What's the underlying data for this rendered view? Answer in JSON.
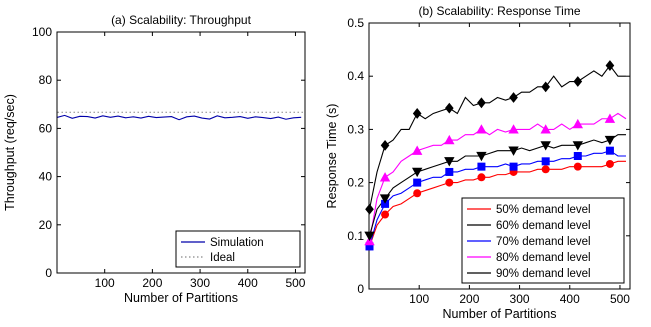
{
  "chart_data": [
    {
      "type": "line",
      "title": "(a) Scalability: Throughput",
      "xlabel": "Number of Partitions",
      "ylabel": "Throughput (req/sec)",
      "xlim": [
        0,
        520
      ],
      "ylim": [
        0,
        100
      ],
      "xticks": [
        100,
        200,
        300,
        400,
        500
      ],
      "yticks": [
        0,
        20,
        40,
        60,
        80,
        100
      ],
      "grid": false,
      "legend_position": "bottom-right",
      "series": [
        {
          "name": "Simulation",
          "color": "#0000aa",
          "style": "solid",
          "x": [
            1,
            16,
            32,
            48,
            64,
            80,
            96,
            112,
            128,
            144,
            160,
            176,
            192,
            208,
            224,
            240,
            256,
            272,
            288,
            304,
            320,
            336,
            352,
            368,
            384,
            400,
            416,
            432,
            448,
            464,
            480,
            496,
            512
          ],
          "y": [
            64.6,
            65.4,
            64.2,
            65.0,
            64.9,
            64.3,
            65.2,
            64.6,
            65.1,
            64.4,
            64.8,
            64.3,
            65.0,
            64.5,
            64.7,
            64.9,
            63.6,
            64.8,
            65.1,
            64.3,
            63.9,
            65.2,
            64.4,
            64.6,
            64.9,
            64.2,
            64.8,
            64.5,
            64.1,
            64.7,
            63.8,
            64.4,
            64.6
          ]
        },
        {
          "name": "Ideal",
          "color": "#888888",
          "style": "dotted",
          "x": [
            1,
            520
          ],
          "y": [
            66.7,
            66.7
          ]
        }
      ]
    },
    {
      "type": "line",
      "title": "(b) Scalability: Response Time",
      "xlabel": "Number of Partitions",
      "ylabel": "Response Time (s)",
      "xlim": [
        0,
        520
      ],
      "ylim": [
        0,
        0.5
      ],
      "xticks": [
        100,
        200,
        300,
        400,
        500
      ],
      "yticks": [
        0,
        0.1,
        0.2,
        0.3,
        0.4,
        0.5
      ],
      "ytick_labels": [
        "0",
        "0.1",
        "0.2",
        "0.3",
        "0.4",
        "0.5"
      ],
      "grid": false,
      "legend_position": "bottom-right",
      "series": [
        {
          "name": "50% demand level",
          "color": "#ff0000",
          "marker": "circle",
          "x": [
            1,
            16,
            32,
            48,
            64,
            80,
            96,
            112,
            128,
            144,
            160,
            176,
            192,
            208,
            224,
            240,
            256,
            272,
            288,
            304,
            320,
            336,
            352,
            368,
            384,
            400,
            416,
            432,
            448,
            464,
            480,
            496,
            512
          ],
          "y": [
            0.08,
            0.12,
            0.14,
            0.155,
            0.16,
            0.17,
            0.18,
            0.185,
            0.19,
            0.195,
            0.2,
            0.2,
            0.205,
            0.205,
            0.21,
            0.21,
            0.215,
            0.215,
            0.22,
            0.22,
            0.22,
            0.225,
            0.225,
            0.225,
            0.225,
            0.23,
            0.23,
            0.23,
            0.23,
            0.23,
            0.235,
            0.24,
            0.24
          ],
          "marker_indices": [
            0,
            2,
            6,
            10,
            14,
            18,
            22,
            26,
            30
          ]
        },
        {
          "name": "60% demand level",
          "color": "#000000",
          "marker": "diamond",
          "x": [
            1,
            16,
            32,
            48,
            64,
            80,
            96,
            112,
            128,
            144,
            160,
            176,
            192,
            208,
            224,
            240,
            256,
            272,
            288,
            304,
            320,
            336,
            352,
            368,
            384,
            400,
            416,
            432,
            448,
            464,
            480,
            496,
            512
          ],
          "y": [
            0.15,
            0.22,
            0.27,
            0.28,
            0.3,
            0.3,
            0.33,
            0.32,
            0.33,
            0.335,
            0.34,
            0.33,
            0.36,
            0.345,
            0.35,
            0.35,
            0.36,
            0.355,
            0.36,
            0.37,
            0.37,
            0.38,
            0.38,
            0.4,
            0.38,
            0.39,
            0.39,
            0.4,
            0.41,
            0.4,
            0.42,
            0.4,
            0.4
          ],
          "marker_indices": [
            0,
            2,
            6,
            10,
            14,
            18,
            22,
            26,
            30
          ]
        },
        {
          "name": "70% demand level",
          "color": "#0000ff",
          "marker": "square",
          "x": [
            1,
            16,
            32,
            48,
            64,
            80,
            96,
            112,
            128,
            144,
            160,
            176,
            192,
            208,
            224,
            240,
            256,
            272,
            288,
            304,
            320,
            336,
            352,
            368,
            384,
            400,
            416,
            432,
            448,
            464,
            480,
            496,
            512
          ],
          "y": [
            0.08,
            0.13,
            0.16,
            0.175,
            0.18,
            0.19,
            0.2,
            0.205,
            0.21,
            0.21,
            0.22,
            0.22,
            0.225,
            0.225,
            0.23,
            0.23,
            0.23,
            0.235,
            0.23,
            0.235,
            0.235,
            0.24,
            0.24,
            0.24,
            0.245,
            0.245,
            0.25,
            0.25,
            0.255,
            0.255,
            0.26,
            0.25,
            0.25
          ],
          "marker_indices": [
            0,
            2,
            6,
            10,
            14,
            18,
            22,
            26,
            30
          ]
        },
        {
          "name": "80% demand level",
          "color": "#ff00ff",
          "marker": "triangle-up",
          "x": [
            1,
            16,
            32,
            48,
            64,
            80,
            96,
            112,
            128,
            144,
            160,
            176,
            192,
            208,
            224,
            240,
            256,
            272,
            288,
            304,
            320,
            336,
            352,
            368,
            384,
            400,
            416,
            432,
            448,
            464,
            480,
            496,
            512
          ],
          "y": [
            0.09,
            0.17,
            0.21,
            0.22,
            0.24,
            0.25,
            0.26,
            0.265,
            0.27,
            0.27,
            0.28,
            0.28,
            0.29,
            0.29,
            0.3,
            0.29,
            0.3,
            0.295,
            0.3,
            0.3,
            0.3,
            0.31,
            0.3,
            0.3,
            0.31,
            0.3,
            0.31,
            0.31,
            0.31,
            0.32,
            0.32,
            0.33,
            0.32
          ],
          "marker_indices": [
            0,
            2,
            6,
            10,
            14,
            18,
            22,
            26,
            30
          ]
        },
        {
          "name": "90% demand level",
          "color": "#000000",
          "marker": "triangle-down",
          "x": [
            1,
            16,
            32,
            48,
            64,
            80,
            96,
            112,
            128,
            144,
            160,
            176,
            192,
            208,
            224,
            240,
            256,
            272,
            288,
            304,
            320,
            336,
            352,
            368,
            384,
            400,
            416,
            432,
            448,
            464,
            480,
            496,
            512
          ],
          "y": [
            0.1,
            0.15,
            0.17,
            0.19,
            0.2,
            0.21,
            0.22,
            0.225,
            0.23,
            0.235,
            0.24,
            0.24,
            0.25,
            0.25,
            0.25,
            0.255,
            0.26,
            0.26,
            0.26,
            0.265,
            0.26,
            0.265,
            0.27,
            0.265,
            0.27,
            0.27,
            0.27,
            0.275,
            0.28,
            0.275,
            0.28,
            0.29,
            0.29
          ],
          "marker_indices": [
            0,
            2,
            6,
            10,
            14,
            18,
            22,
            26,
            30
          ]
        }
      ]
    }
  ]
}
